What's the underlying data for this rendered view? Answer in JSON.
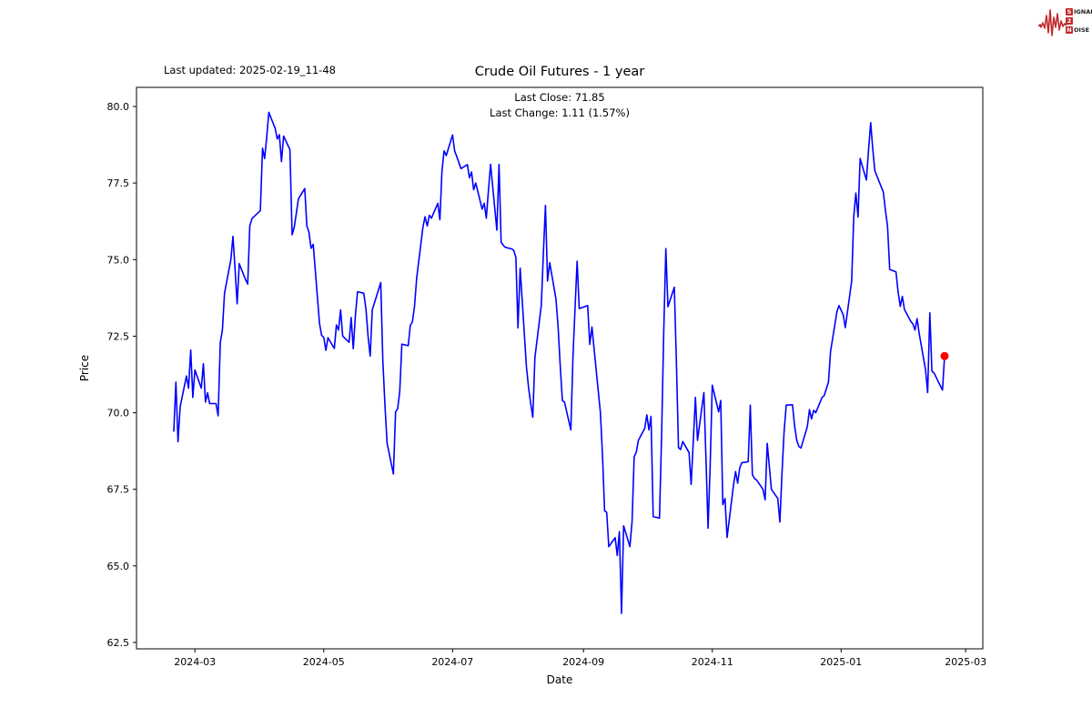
{
  "header": {
    "last_updated": "Last updated: 2025-02-19_11-48",
    "title": "Crude Oil Futures - 1 year",
    "annotation_line1": "Last Close: 71.85",
    "annotation_line2": "Last Change: 1.11 (1.57%)"
  },
  "logo": {
    "rows": [
      {
        "initial": "S",
        "rest": "IGNAL"
      },
      {
        "initial": "2",
        "rest": ""
      },
      {
        "initial": "N",
        "rest": "OISE"
      }
    ],
    "color": "#c22a2d"
  },
  "chart_data": {
    "type": "line",
    "title": "Crude Oil Futures - 1 year",
    "xlabel": "Date",
    "ylabel": "Price",
    "last_close": 71.85,
    "last_change": 1.11,
    "last_change_pct": 1.57,
    "line_color": "#0000ff",
    "marker_color": "#ff0000",
    "grid": false,
    "legend": "none",
    "ylim": [
      62.3,
      80.6
    ],
    "y_ticks": [
      62.5,
      65.0,
      67.5,
      70.0,
      72.5,
      75.0,
      77.5,
      80.0
    ],
    "x_ticks": [
      {
        "label": "2024-03",
        "date": "2024-03-01"
      },
      {
        "label": "2024-05",
        "date": "2024-05-01"
      },
      {
        "label": "2024-07",
        "date": "2024-07-01"
      },
      {
        "label": "2024-09",
        "date": "2024-09-01"
      },
      {
        "label": "2024-11",
        "date": "2024-11-01"
      },
      {
        "label": "2025-01",
        "date": "2025-01-01"
      },
      {
        "label": "2025-03",
        "date": "2025-03-01"
      }
    ],
    "dates": [
      "2024-02-20",
      "2024-02-21",
      "2024-02-22",
      "2024-02-23",
      "2024-02-26",
      "2024-02-27",
      "2024-02-28",
      "2024-02-29",
      "2024-03-01",
      "2024-03-04",
      "2024-03-05",
      "2024-03-06",
      "2024-03-07",
      "2024-03-08",
      "2024-03-11",
      "2024-03-12",
      "2024-03-13",
      "2024-03-14",
      "2024-03-15",
      "2024-03-18",
      "2024-03-19",
      "2024-03-20",
      "2024-03-21",
      "2024-03-22",
      "2024-03-25",
      "2024-03-26",
      "2024-03-27",
      "2024-03-28",
      "2024-04-01",
      "2024-04-02",
      "2024-04-03",
      "2024-04-04",
      "2024-04-05",
      "2024-04-08",
      "2024-04-09",
      "2024-04-10",
      "2024-04-11",
      "2024-04-12",
      "2024-04-15",
      "2024-04-16",
      "2024-04-17",
      "2024-04-18",
      "2024-04-19",
      "2024-04-22",
      "2024-04-23",
      "2024-04-24",
      "2024-04-25",
      "2024-04-26",
      "2024-04-29",
      "2024-04-30",
      "2024-05-01",
      "2024-05-02",
      "2024-05-03",
      "2024-05-06",
      "2024-05-07",
      "2024-05-08",
      "2024-05-09",
      "2024-05-10",
      "2024-05-13",
      "2024-05-14",
      "2024-05-15",
      "2024-05-16",
      "2024-05-17",
      "2024-05-20",
      "2024-05-21",
      "2024-05-22",
      "2024-05-23",
      "2024-05-24",
      "2024-05-28",
      "2024-05-29",
      "2024-05-30",
      "2024-05-31",
      "2024-06-03",
      "2024-06-04",
      "2024-06-05",
      "2024-06-06",
      "2024-06-07",
      "2024-06-10",
      "2024-06-11",
      "2024-06-12",
      "2024-06-13",
      "2024-06-14",
      "2024-06-17",
      "2024-06-18",
      "2024-06-19",
      "2024-06-20",
      "2024-06-21",
      "2024-06-24",
      "2024-06-25",
      "2024-06-26",
      "2024-06-27",
      "2024-06-28",
      "2024-07-01",
      "2024-07-02",
      "2024-07-03",
      "2024-07-05",
      "2024-07-08",
      "2024-07-09",
      "2024-07-10",
      "2024-07-11",
      "2024-07-12",
      "2024-07-15",
      "2024-07-16",
      "2024-07-17",
      "2024-07-18",
      "2024-07-19",
      "2024-07-22",
      "2024-07-23",
      "2024-07-24",
      "2024-07-25",
      "2024-07-26",
      "2024-07-29",
      "2024-07-30",
      "2024-07-31",
      "2024-08-01",
      "2024-08-02",
      "2024-08-05",
      "2024-08-06",
      "2024-08-07",
      "2024-08-08",
      "2024-08-09",
      "2024-08-12",
      "2024-08-13",
      "2024-08-14",
      "2024-08-15",
      "2024-08-16",
      "2024-08-19",
      "2024-08-20",
      "2024-08-21",
      "2024-08-22",
      "2024-08-23",
      "2024-08-26",
      "2024-08-27",
      "2024-08-28",
      "2024-08-29",
      "2024-08-30",
      "2024-09-03",
      "2024-09-04",
      "2024-09-05",
      "2024-09-06",
      "2024-09-09",
      "2024-09-10",
      "2024-09-11",
      "2024-09-12",
      "2024-09-13",
      "2024-09-16",
      "2024-09-17",
      "2024-09-18",
      "2024-09-19",
      "2024-09-20",
      "2024-09-23",
      "2024-09-24",
      "2024-09-25",
      "2024-09-26",
      "2024-09-27",
      "2024-09-30",
      "2024-10-01",
      "2024-10-02",
      "2024-10-03",
      "2024-10-04",
      "2024-10-07",
      "2024-10-08",
      "2024-10-09",
      "2024-10-10",
      "2024-10-11",
      "2024-10-14",
      "2024-10-15",
      "2024-10-16",
      "2024-10-17",
      "2024-10-18",
      "2024-10-21",
      "2024-10-22",
      "2024-10-23",
      "2024-10-24",
      "2024-10-25",
      "2024-10-28",
      "2024-10-29",
      "2024-10-30",
      "2024-10-31",
      "2024-11-01",
      "2024-11-04",
      "2024-11-05",
      "2024-11-06",
      "2024-11-07",
      "2024-11-08",
      "2024-11-11",
      "2024-11-12",
      "2024-11-13",
      "2024-11-14",
      "2024-11-15",
      "2024-11-18",
      "2024-11-19",
      "2024-11-20",
      "2024-11-21",
      "2024-11-22",
      "2024-11-25",
      "2024-11-26",
      "2024-11-27",
      "2024-11-29",
      "2024-12-02",
      "2024-12-03",
      "2024-12-04",
      "2024-12-05",
      "2024-12-06",
      "2024-12-09",
      "2024-12-10",
      "2024-12-11",
      "2024-12-12",
      "2024-12-13",
      "2024-12-16",
      "2024-12-17",
      "2024-12-18",
      "2024-12-19",
      "2024-12-20",
      "2024-12-23",
      "2024-12-24",
      "2024-12-26",
      "2024-12-27",
      "2024-12-30",
      "2024-12-31",
      "2025-01-02",
      "2025-01-03",
      "2025-01-06",
      "2025-01-07",
      "2025-01-08",
      "2025-01-09",
      "2025-01-10",
      "2025-01-13",
      "2025-01-14",
      "2025-01-15",
      "2025-01-16",
      "2025-01-17",
      "2025-01-21",
      "2025-01-22",
      "2025-01-23",
      "2025-01-24",
      "2025-01-27",
      "2025-01-28",
      "2025-01-29",
      "2025-01-30",
      "2025-01-31",
      "2025-02-03",
      "2025-02-04",
      "2025-02-05",
      "2025-02-06",
      "2025-02-07",
      "2025-02-10",
      "2025-02-11",
      "2025-02-12",
      "2025-02-13",
      "2025-02-14",
      "2025-02-18",
      "2025-02-19"
    ],
    "values": [
      69.4,
      71.0,
      69.05,
      70.2,
      71.2,
      70.8,
      72.05,
      70.5,
      71.4,
      70.8,
      71.6,
      70.35,
      70.65,
      70.3,
      70.3,
      69.9,
      72.3,
      72.7,
      73.9,
      75.0,
      75.76,
      74.7,
      73.56,
      74.87,
      74.34,
      74.2,
      76.1,
      76.34,
      76.6,
      78.64,
      78.3,
      79.0,
      79.81,
      79.28,
      78.94,
      79.08,
      78.2,
      79.03,
      78.59,
      75.81,
      76.05,
      76.5,
      76.98,
      77.32,
      76.1,
      75.9,
      75.37,
      75.5,
      72.92,
      72.53,
      72.46,
      72.04,
      72.45,
      72.1,
      72.87,
      72.7,
      73.36,
      72.5,
      72.3,
      73.11,
      72.09,
      73.2,
      73.95,
      73.9,
      73.37,
      72.49,
      71.85,
      73.36,
      74.25,
      71.7,
      70.2,
      69.0,
      68.0,
      70.03,
      70.13,
      70.7,
      72.24,
      72.19,
      72.85,
      72.97,
      73.47,
      74.4,
      76.07,
      76.4,
      76.1,
      76.45,
      76.35,
      76.84,
      76.3,
      77.9,
      78.55,
      78.4,
      79.07,
      78.55,
      78.36,
      77.97,
      78.1,
      77.67,
      77.86,
      77.28,
      77.5,
      76.65,
      76.84,
      76.35,
      77.28,
      78.11,
      75.96,
      78.11,
      75.57,
      75.47,
      75.4,
      75.35,
      75.3,
      75.07,
      72.77,
      74.72,
      71.5,
      70.8,
      70.3,
      69.85,
      71.8,
      73.5,
      75.2,
      76.77,
      74.3,
      74.9,
      73.7,
      72.8,
      71.5,
      70.4,
      70.35,
      69.44,
      71.8,
      73.4,
      74.95,
      73.4,
      73.5,
      72.23,
      72.8,
      72.1,
      70.0,
      68.6,
      66.8,
      66.75,
      65.63,
      65.92,
      65.34,
      66.12,
      63.45,
      66.31,
      65.63,
      66.46,
      68.56,
      68.71,
      69.1,
      69.49,
      69.93,
      69.44,
      69.88,
      66.61,
      66.56,
      69.2,
      72.67,
      75.36,
      73.46,
      74.1,
      71.65,
      68.86,
      68.8,
      69.06,
      68.7,
      67.66,
      69.1,
      70.5,
      69.1,
      70.66,
      68.5,
      66.23,
      68.27,
      70.9,
      70.03,
      70.4,
      67.0,
      67.2,
      65.93,
      67.6,
      68.08,
      67.7,
      68.2,
      68.37,
      68.4,
      70.25,
      67.98,
      67.85,
      67.8,
      67.5,
      67.16,
      69.0,
      67.5,
      67.2,
      66.43,
      68.0,
      69.36,
      70.25,
      70.26,
      69.56,
      69.1,
      68.9,
      68.85,
      69.55,
      70.1,
      69.8,
      70.08,
      70.0,
      70.5,
      70.56,
      71.0,
      72.0,
      73.3,
      73.5,
      73.2,
      72.78,
      74.3,
      76.39,
      77.17,
      76.39,
      78.3,
      77.6,
      78.6,
      79.47,
      78.6,
      77.9,
      77.2,
      76.6,
      76.1,
      74.68,
      74.6,
      73.95,
      73.47,
      73.8,
      73.37,
      72.98,
      72.9,
      72.7,
      73.07,
      72.57,
      71.4,
      70.66,
      73.26,
      71.35,
      71.3,
      70.74,
      71.85
    ]
  }
}
